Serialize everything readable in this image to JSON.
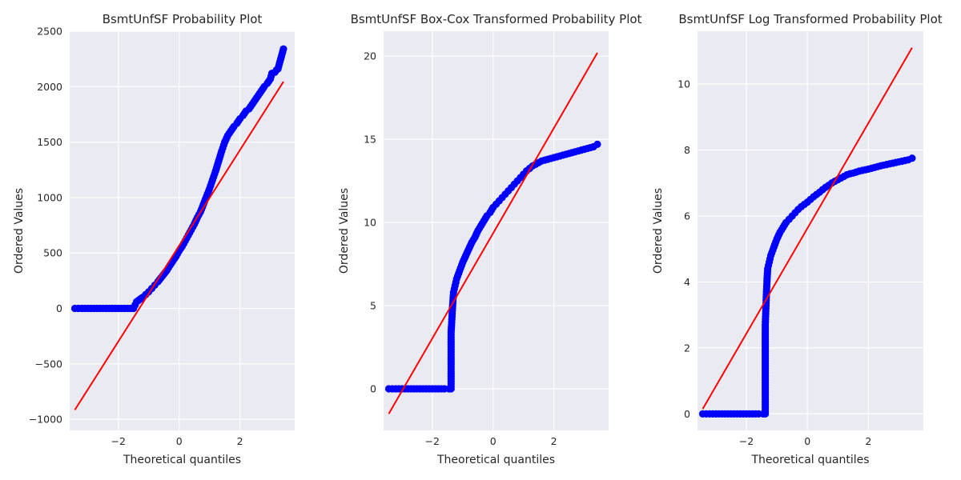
{
  "chart_data": [
    {
      "type": "scatter",
      "title": "BsmtUnfSF Probability Plot",
      "xlabel": "Theoretical quantiles",
      "ylabel": "Ordered Values",
      "xlim": [
        -3.6,
        3.8
      ],
      "ylim": [
        -1100,
        2500
      ],
      "xticks": [
        -2,
        0,
        2
      ],
      "xtick_labels": [
        "−2",
        "0",
        "2"
      ],
      "yticks": [
        -1000,
        -500,
        0,
        500,
        1000,
        1500,
        2000,
        2500
      ],
      "ytick_labels": [
        "−1000",
        "−500",
        "0",
        "500",
        "1000",
        "1500",
        "2000",
        "2500"
      ],
      "grid": true,
      "series": [
        {
          "kind": "points",
          "color": "#0000ff",
          "x": [
            -3.43,
            -3.2,
            -3.0,
            -2.8,
            -2.6,
            -2.4,
            -2.2,
            -2.0,
            -1.8,
            -1.6,
            -1.5,
            -1.45,
            -1.4,
            -1.35,
            -1.3,
            -1.25,
            -1.2,
            -1.1,
            -1.0,
            -0.9,
            -0.8,
            -0.7,
            -0.6,
            -0.5,
            -0.4,
            -0.3,
            -0.2,
            -0.1,
            0.0,
            0.1,
            0.2,
            0.3,
            0.4,
            0.5,
            0.6,
            0.7,
            0.8,
            0.9,
            1.0,
            1.1,
            1.2,
            1.3,
            1.4,
            1.5,
            1.6,
            1.7,
            1.8,
            1.9,
            2.0,
            2.1,
            2.2,
            2.3,
            2.4,
            2.5,
            2.6,
            2.7,
            2.8,
            2.9,
            3.0,
            3.05,
            3.15,
            3.2,
            3.25,
            3.43
          ],
          "y": [
            0,
            0,
            0,
            0,
            0,
            0,
            0,
            0,
            0,
            0,
            0,
            30,
            60,
            70,
            80,
            90,
            100,
            125,
            150,
            180,
            210,
            240,
            275,
            310,
            345,
            390,
            430,
            470,
            520,
            560,
            610,
            660,
            710,
            760,
            820,
            870,
            940,
            1010,
            1080,
            1160,
            1240,
            1330,
            1420,
            1500,
            1560,
            1600,
            1640,
            1670,
            1710,
            1740,
            1780,
            1800,
            1840,
            1880,
            1920,
            1960,
            2000,
            2030,
            2070,
            2120,
            2130,
            2150,
            2160,
            2340
          ]
        },
        {
          "kind": "fit-line",
          "color": "#ff0000",
          "x": [
            -3.43,
            3.43
          ],
          "y": [
            -915,
            2045
          ]
        }
      ]
    },
    {
      "type": "scatter",
      "title": "BsmtUnfSF Box-Cox Transformed Probability Plot",
      "xlabel": "Theoretical quantiles",
      "ylabel": "Ordered Values",
      "xlim": [
        -3.6,
        3.8
      ],
      "ylim": [
        -2.5,
        21.5
      ],
      "xticks": [
        -2,
        0,
        2
      ],
      "xtick_labels": [
        "−2",
        "0",
        "2"
      ],
      "yticks": [
        0,
        5,
        10,
        15,
        20
      ],
      "ytick_labels": [
        "0",
        "5",
        "10",
        "15",
        "20"
      ],
      "grid": true,
      "series": [
        {
          "kind": "points",
          "color": "#0000ff",
          "x": [
            -3.43,
            -3.2,
            -3.0,
            -2.8,
            -2.6,
            -2.4,
            -2.2,
            -2.0,
            -1.8,
            -1.6,
            -1.45,
            -1.38,
            -1.38,
            -1.36,
            -1.34,
            -1.32,
            -1.3,
            -1.25,
            -1.2,
            -1.1,
            -1.0,
            -0.9,
            -0.8,
            -0.7,
            -0.6,
            -0.5,
            -0.4,
            -0.3,
            -0.2,
            -0.1,
            0.0,
            0.1,
            0.2,
            0.3,
            0.4,
            0.5,
            0.6,
            0.7,
            0.8,
            0.9,
            1.0,
            1.1,
            1.2,
            1.3,
            1.4,
            1.5,
            1.6,
            1.7,
            1.8,
            1.9,
            2.0,
            2.2,
            2.4,
            2.6,
            2.8,
            3.0,
            3.1,
            3.2,
            3.3,
            3.43
          ],
          "y": [
            0,
            0,
            0,
            0,
            0,
            0,
            0,
            0,
            0,
            0,
            0,
            0,
            3.4,
            4.0,
            4.7,
            5.3,
            5.8,
            6.2,
            6.6,
            7.1,
            7.6,
            8.0,
            8.4,
            8.8,
            9.1,
            9.5,
            9.8,
            10.1,
            10.4,
            10.6,
            10.9,
            11.1,
            11.3,
            11.5,
            11.7,
            11.9,
            12.1,
            12.3,
            12.5,
            12.7,
            12.9,
            13.1,
            13.25,
            13.4,
            13.5,
            13.6,
            13.7,
            13.75,
            13.8,
            13.85,
            13.9,
            14.0,
            14.1,
            14.2,
            14.3,
            14.4,
            14.45,
            14.5,
            14.55,
            14.7
          ]
        },
        {
          "kind": "fit-line",
          "color": "#ff0000",
          "x": [
            -3.43,
            3.43
          ],
          "y": [
            -1.5,
            20.2
          ]
        }
      ]
    },
    {
      "type": "scatter",
      "title": "BsmtUnfSF Log Transformed Probability Plot",
      "xlabel": "Theoretical quantiles",
      "ylabel": "Ordered Values",
      "xlim": [
        -3.6,
        3.8
      ],
      "ylim": [
        -0.5,
        11.6
      ],
      "xticks": [
        -2,
        0,
        2
      ],
      "xtick_labels": [
        "−2",
        "0",
        "2"
      ],
      "yticks": [
        0,
        2,
        4,
        6,
        8,
        10
      ],
      "ytick_labels": [
        "0",
        "2",
        "4",
        "6",
        "8",
        "10"
      ],
      "grid": true,
      "series": [
        {
          "kind": "points",
          "color": "#0000ff",
          "x": [
            -3.43,
            -3.2,
            -3.0,
            -2.8,
            -2.6,
            -2.4,
            -2.2,
            -2.0,
            -1.8,
            -1.6,
            -1.45,
            -1.38,
            -1.38,
            -1.36,
            -1.34,
            -1.32,
            -1.3,
            -1.25,
            -1.2,
            -1.1,
            -1.0,
            -0.9,
            -0.8,
            -0.7,
            -0.6,
            -0.5,
            -0.4,
            -0.3,
            -0.2,
            -0.1,
            0.0,
            0.1,
            0.2,
            0.3,
            0.4,
            0.5,
            0.6,
            0.7,
            0.8,
            0.9,
            1.0,
            1.1,
            1.2,
            1.3,
            1.4,
            1.5,
            1.6,
            1.7,
            1.8,
            1.9,
            2.0,
            2.2,
            2.4,
            2.6,
            2.8,
            3.0,
            3.1,
            3.2,
            3.3,
            3.43
          ],
          "y": [
            0,
            0,
            0,
            0,
            0,
            0,
            0,
            0,
            0,
            0,
            0,
            0,
            2.7,
            3.2,
            3.7,
            4.1,
            4.4,
            4.6,
            4.8,
            5.05,
            5.3,
            5.5,
            5.65,
            5.8,
            5.9,
            6.0,
            6.1,
            6.2,
            6.28,
            6.35,
            6.42,
            6.5,
            6.58,
            6.65,
            6.72,
            6.8,
            6.87,
            6.93,
            7.0,
            7.05,
            7.1,
            7.15,
            7.2,
            7.25,
            7.28,
            7.3,
            7.33,
            7.36,
            7.38,
            7.4,
            7.42,
            7.47,
            7.52,
            7.56,
            7.6,
            7.64,
            7.66,
            7.68,
            7.7,
            7.75
          ]
        },
        {
          "kind": "fit-line",
          "color": "#ff0000",
          "x": [
            -3.43,
            3.43
          ],
          "y": [
            0.15,
            11.1
          ]
        }
      ]
    }
  ]
}
